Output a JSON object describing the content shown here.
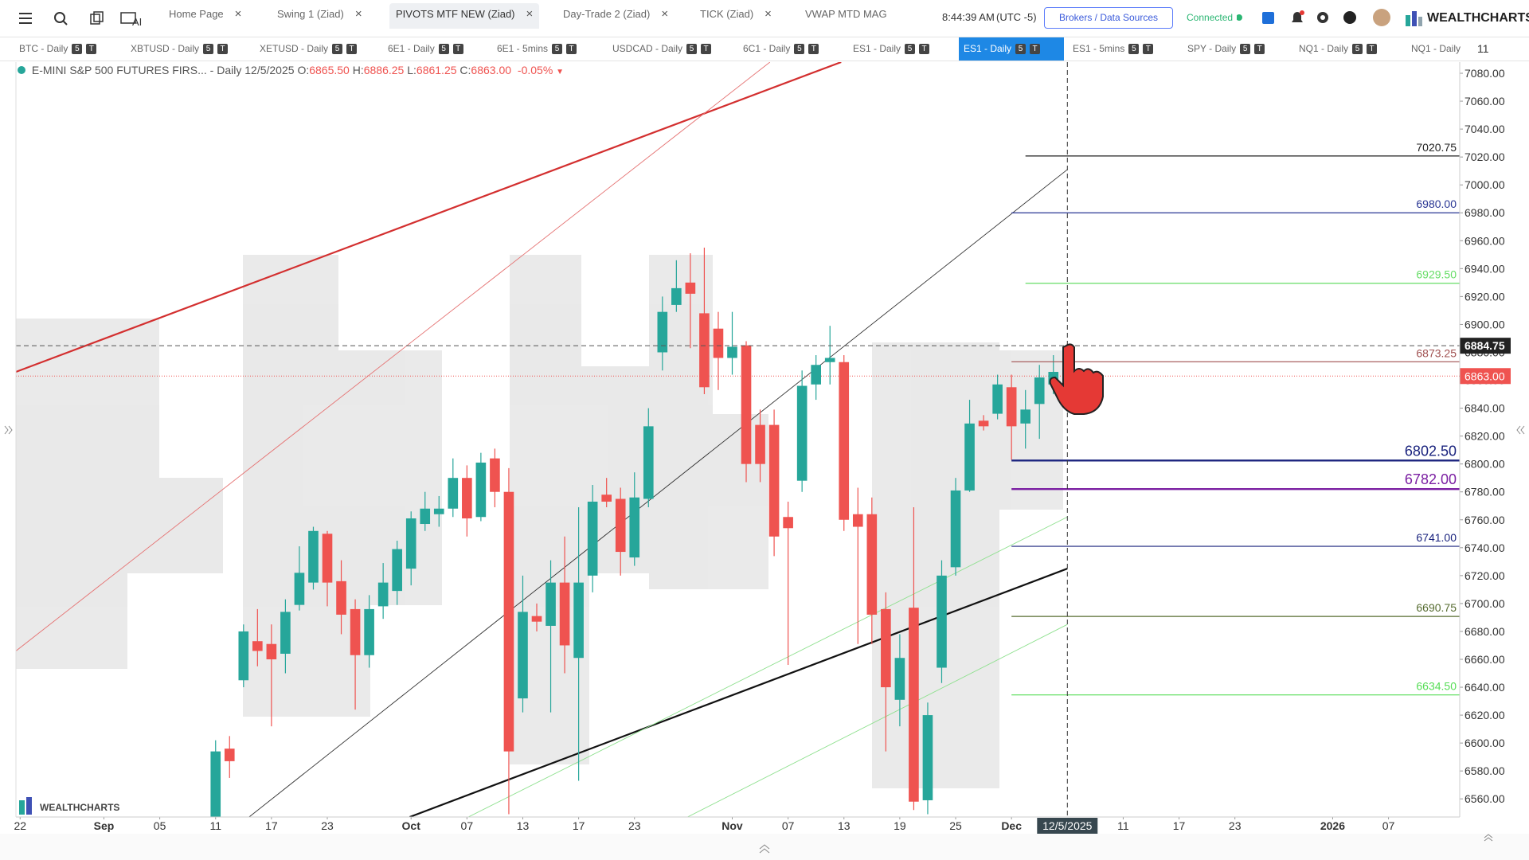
{
  "toolbar": {
    "tabs": [
      "Home Page",
      "Swing 1 (Ziad)",
      "PIVOTS MTF NEW (Ziad)",
      "Day-Trade 2 (Ziad)",
      "TICK (Ziad)",
      "VWAP MTD MAG"
    ],
    "active_tab": 2,
    "ai": "AI",
    "time": "8:44:39 AM",
    "timezone": "(UTC -5)",
    "brokers": "Brokers / Data Sources",
    "status": "Connected",
    "brand": "WEALTHCHARTS"
  },
  "symbols": {
    "tabs": [
      "BTC - Daily",
      "XBTUSD - Daily",
      "XETUSD - Daily",
      "6E1 - Daily",
      "6E1 - 5mins",
      "USDCAD - Daily",
      "6C1 - Daily",
      "ES1 - Daily",
      "ES1 - Daily",
      "ES1 - 5mins",
      "SPY - Daily",
      "NQ1 - Daily",
      "NQ1 - Daily"
    ],
    "active": 8,
    "badges": [
      "5",
      "T"
    ],
    "count": "11"
  },
  "chart_data": {
    "type": "candlestick",
    "title": "E-MINI S&P 500 FUTURES FIRS... - Daily",
    "legend": {
      "date": "12/5/2025",
      "open_label": "O:",
      "open": "6865.50",
      "high_label": "H:",
      "high": "6886.25",
      "low_label": "L:",
      "low": "6861.25",
      "close_label": "C:",
      "close": "6863.00",
      "change": "-0.05%"
    },
    "x": [
      14,
      15,
      16,
      17,
      18,
      19,
      20,
      21,
      22,
      23,
      24,
      25,
      26,
      27,
      28,
      29,
      30,
      31,
      32,
      33,
      34,
      35,
      36,
      37,
      38,
      39,
      40,
      41,
      42,
      43,
      44,
      45,
      46,
      47,
      48,
      49,
      50,
      51,
      52,
      53,
      54,
      55,
      56,
      57,
      58,
      59,
      60,
      61,
      62,
      63,
      64,
      65,
      66,
      67,
      68,
      69,
      70,
      71,
      72,
      73,
      74,
      75
    ],
    "open": [
      6545,
      6596,
      6645,
      6673,
      6671,
      6664,
      6699,
      6715,
      6750,
      6716,
      6696,
      6663,
      6698,
      6709,
      6725,
      6757,
      6764,
      6768,
      6790,
      6762,
      6804,
      6780,
      6632,
      6691,
      6684,
      6715,
      6661,
      6720,
      6778,
      6775,
      6733,
      6775,
      6880,
      6914,
      6930,
      6908,
      6897,
      6876,
      6885,
      6828,
      6828,
      6762,
      6788,
      6857,
      6873,
      6873,
      6764,
      6764,
      6696,
      6631,
      6697,
      6559,
      6654,
      6726,
      6781,
      6831,
      6836,
      6855,
      6829,
      6843,
      6857,
      6865.5
    ],
    "high": [
      6602,
      6605,
      6685,
      6696,
      6685,
      6703,
      6741,
      6755,
      6752,
      6731,
      6703,
      6706,
      6729,
      6745,
      6766,
      6780,
      6777,
      6804,
      6799,
      6808,
      6811,
      6797,
      6720,
      6700,
      6731,
      6748,
      6769,
      6785,
      6790,
      6783,
      6794,
      6840,
      6920,
      6946,
      6951,
      6955,
      6909,
      6909,
      6888,
      6839,
      6839,
      6773,
      6867,
      6878,
      6899,
      6878,
      6783,
      6776,
      6708,
      6678,
      6769,
      6629,
      6731,
      6790,
      6846,
      6835,
      6864,
      6864,
      6853,
      6871,
      6878,
      6886.25
    ],
    "low": [
      6540,
      6575,
      6640,
      6655,
      6612,
      6650,
      6695,
      6710,
      6698,
      6678,
      6624,
      6654,
      6689,
      6699,
      6713,
      6752,
      6755,
      6762,
      6748,
      6759,
      6769,
      6549,
      6622,
      6680,
      6622,
      6650,
      6573,
      6708,
      6769,
      6720,
      6727,
      6769,
      6867,
      6909,
      6883,
      6850,
      6853,
      6864,
      6787,
      6787,
      6734,
      6656,
      6780,
      6846,
      6857,
      6752,
      6671,
      6671,
      6594,
      6612,
      6552,
      6549,
      6643,
      6720,
      6780,
      6824,
      6832,
      6803,
      6811,
      6818,
      6850,
      6861.25
    ],
    "close": [
      6594,
      6587,
      6680,
      6666,
      6660,
      6694,
      6722,
      6752,
      6715,
      6692,
      6663,
      6696,
      6715,
      6739,
      6761,
      6768,
      6768,
      6790,
      6761,
      6801,
      6780,
      6594,
      6694,
      6687,
      6715,
      6670,
      6715,
      6773,
      6773,
      6737,
      6776,
      6827,
      6909,
      6926,
      6922,
      6855,
      6876,
      6884,
      6800,
      6800,
      6748,
      6754,
      6856,
      6871,
      6876,
      6760,
      6755,
      6692,
      6640,
      6661,
      6558,
      6620,
      6720,
      6781,
      6829,
      6827,
      6857,
      6827,
      6839,
      6862,
      6866,
      6863
    ],
    "up_color": "#26a69a",
    "down_color": "#ef5350",
    "xlim": [
      -0.3,
      103.1
    ],
    "ylim": [
      6547,
      7088
    ],
    "xticks": [
      {
        "value": 0,
        "label": "22"
      },
      {
        "value": 6,
        "label": "Sep"
      },
      {
        "value": 10,
        "label": "05"
      },
      {
        "value": 14,
        "label": "11"
      },
      {
        "value": 18,
        "label": "17"
      },
      {
        "value": 22,
        "label": "23"
      },
      {
        "value": 28,
        "label": "Oct"
      },
      {
        "value": 32,
        "label": "07"
      },
      {
        "value": 36,
        "label": "13"
      },
      {
        "value": 40,
        "label": "17"
      },
      {
        "value": 44,
        "label": "23"
      },
      {
        "value": 51,
        "label": "Nov"
      },
      {
        "value": 55,
        "label": "07"
      },
      {
        "value": 59,
        "label": "13"
      },
      {
        "value": 63,
        "label": "19"
      },
      {
        "value": 67,
        "label": "25"
      },
      {
        "value": 71,
        "label": "Dec"
      },
      {
        "value": 79,
        "label": "11"
      },
      {
        "value": 83,
        "label": "17"
      },
      {
        "value": 87,
        "label": "23"
      },
      {
        "value": 94,
        "label": "2026"
      },
      {
        "value": 98,
        "label": "07"
      }
    ],
    "yticks": [
      {
        "value": 6560,
        "label": "6560.00"
      },
      {
        "value": 6580,
        "label": "6580.00"
      },
      {
        "value": 6600,
        "label": "6600.00"
      },
      {
        "value": 6620,
        "label": "6620.00"
      },
      {
        "value": 6640,
        "label": "6640.00"
      },
      {
        "value": 6660,
        "label": "6660.00"
      },
      {
        "value": 6680,
        "label": "6680.00"
      },
      {
        "value": 6700,
        "label": "6700.00"
      },
      {
        "value": 6720,
        "label": "6720.00"
      },
      {
        "value": 6740,
        "label": "6740.00"
      },
      {
        "value": 6760,
        "label": "6760.00"
      },
      {
        "value": 6780,
        "label": "6780.00"
      },
      {
        "value": 6800,
        "label": "6800.00"
      },
      {
        "value": 6820,
        "label": "6820.00"
      },
      {
        "value": 6840,
        "label": "6840.00"
      },
      {
        "value": 6860,
        "label": "6860.00"
      },
      {
        "value": 6880,
        "label": "6880.00"
      },
      {
        "value": 6900,
        "label": "6900.00"
      },
      {
        "value": 6920,
        "label": "6920.00"
      },
      {
        "value": 6940,
        "label": "6940.00"
      },
      {
        "value": 6960,
        "label": "6960.00"
      },
      {
        "value": 6980,
        "label": "6980.00"
      },
      {
        "value": 7000,
        "label": "7000.00"
      },
      {
        "value": 7020,
        "label": "7020.00"
      },
      {
        "value": 7040,
        "label": "7040.00"
      },
      {
        "value": 7060,
        "label": "7060.00"
      },
      {
        "value": 7080,
        "label": "7080.00"
      }
    ],
    "levels": [
      {
        "value": 7020.75,
        "label": "7020.75",
        "color": "#222222",
        "from": 72
      },
      {
        "value": 6980,
        "label": "6980.00",
        "color": "#283593",
        "from": 71
      },
      {
        "value": 6929.5,
        "label": "6929.50",
        "color": "#66dd66",
        "from": 72
      },
      {
        "value": 6873.25,
        "label": "6873.25",
        "color": "#a05050",
        "from": 71
      },
      {
        "value": 6802.5,
        "label": "6802.50",
        "color": "#1a237e",
        "from": 71,
        "bold": true
      },
      {
        "value": 6782,
        "label": "6782.00",
        "color": "#7b1fa2",
        "from": 71,
        "bold": true
      },
      {
        "value": 6741,
        "label": "6741.00",
        "color": "#1a237e",
        "from": 71
      },
      {
        "value": 6690.75,
        "label": "6690.75",
        "color": "#556b2f",
        "from": 71
      },
      {
        "value": 6634.5,
        "label": "6634.50",
        "color": "#55dd55",
        "from": 71
      }
    ],
    "trendlines": [
      {
        "color": "#d32f2f",
        "points": [
          [
            -0.3,
            6866
          ],
          [
            58.8,
            7088
          ]
        ]
      },
      {
        "color": "#e57373",
        "points": [
          [
            -0.3,
            6666
          ],
          [
            53.7,
            7088
          ]
        ]
      },
      {
        "color": "#111111",
        "points": [
          [
            27.9,
            6547
          ],
          [
            75,
            6725
          ]
        ]
      },
      {
        "color": "#333333",
        "points": [
          [
            16.4,
            6547
          ],
          [
            75,
            7011
          ]
        ]
      },
      {
        "color": "#8ee08e",
        "points": [
          [
            32.1,
            6547
          ],
          [
            75,
            6762
          ]
        ]
      },
      {
        "color": "#8ee08e",
        "points": [
          [
            47.8,
            6547
          ],
          [
            75,
            6685
          ]
        ]
      }
    ],
    "crosshair": {
      "x": 75,
      "x_label": "12/5/2025",
      "y": 6884.75,
      "y_label": "6884.75"
    },
    "last_price": {
      "value": 6863,
      "label": "6863.00"
    },
    "watermark": "WEALTHCHARTS"
  }
}
